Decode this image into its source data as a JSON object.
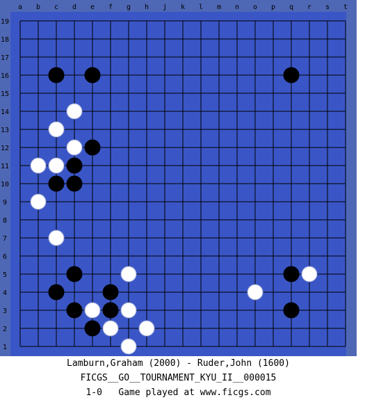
{
  "board": {
    "size": 19,
    "column_labels": [
      "a",
      "b",
      "c",
      "d",
      "e",
      "f",
      "g",
      "h",
      "j",
      "k",
      "l",
      "m",
      "n",
      "o",
      "p",
      "q",
      "r",
      "s",
      "t"
    ],
    "row_labels": [
      "19",
      "18",
      "17",
      "16",
      "15",
      "14",
      "13",
      "12",
      "11",
      "10",
      "9",
      "8",
      "7",
      "6",
      "5",
      "4",
      "3",
      "2",
      "1"
    ],
    "colors": {
      "frame": "#4f68b5",
      "board": "#3a56c6",
      "grid": "#000000",
      "black_stone": "#000000",
      "white_stone": "#ffffff"
    },
    "black_stones": [
      "c16",
      "e16",
      "q16",
      "e12",
      "d11",
      "c10",
      "d10",
      "d5",
      "q5",
      "c4",
      "f4",
      "d3",
      "f3",
      "q3",
      "e2"
    ],
    "white_stones": [
      "d14",
      "c13",
      "d12",
      "b11",
      "c11",
      "b9",
      "c7",
      "g5",
      "r5",
      "o4",
      "e3",
      "g3",
      "f2",
      "h2",
      "g1"
    ]
  },
  "caption": {
    "players": "Lamburn,Graham (2000) - Ruder,John (1600)",
    "event": "FICGS__GO__TOURNAMENT_KYU_II__000015",
    "result_line": "1-0   Game played at www.ficgs.com"
  }
}
